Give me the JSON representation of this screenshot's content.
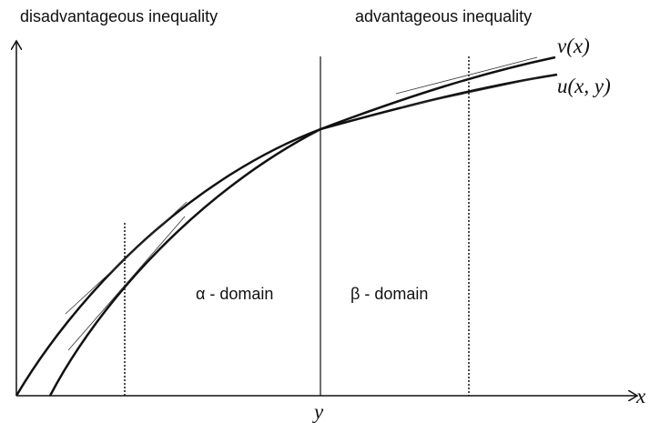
{
  "header": {
    "left_region": "disadvantageous inequality",
    "right_region": "advantageous inequality"
  },
  "curves": {
    "v": "v(x)",
    "u": "u(x, y)"
  },
  "domains": {
    "alpha": "α - domain",
    "beta": "β - domain"
  },
  "axes": {
    "x": "x",
    "y": "y"
  }
}
